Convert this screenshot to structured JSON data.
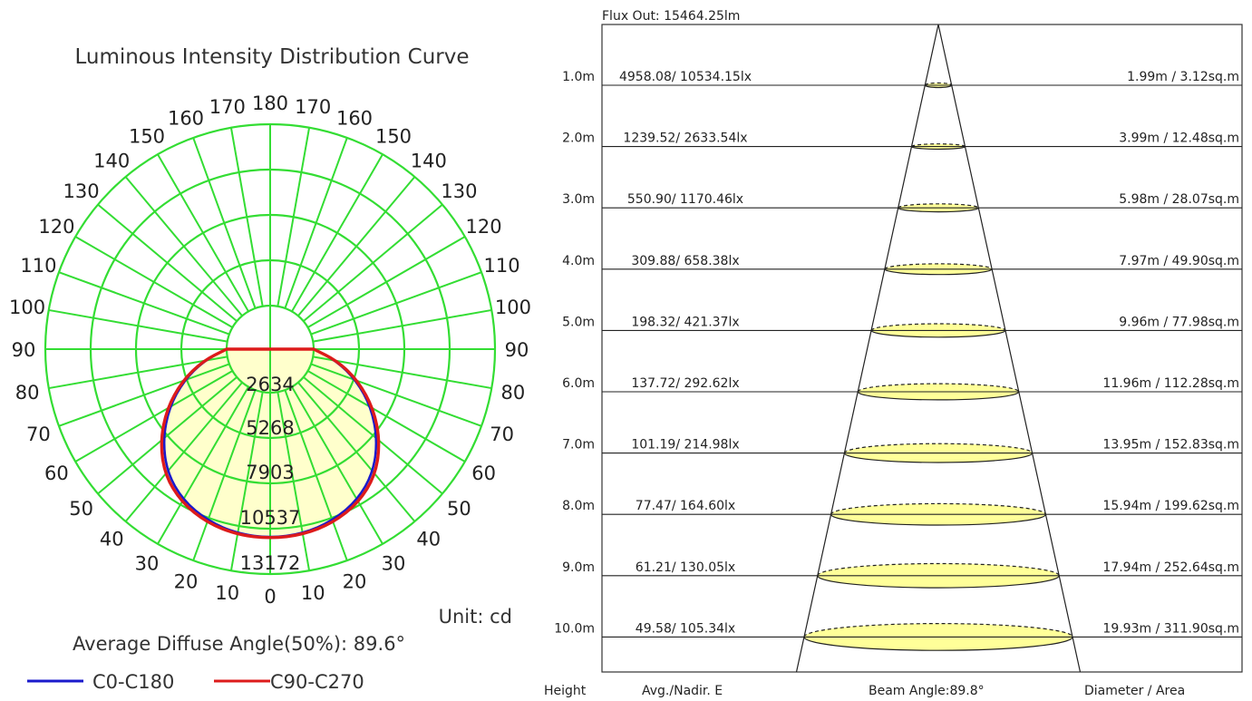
{
  "polar": {
    "title": "Luminous Intensity Distribution Curve",
    "unit_label": "Unit: cd",
    "diffuse_label": "Average Diffuse Angle(50%): 89.6°",
    "ring_labels": [
      "2634",
      "5268",
      "7903",
      "10537",
      "13172"
    ],
    "angle_labels": {
      "left": [
        "0",
        "10",
        "20",
        "30",
        "40",
        "50",
        "60",
        "70",
        "80",
        "90",
        "100",
        "110",
        "120",
        "130",
        "140",
        "150",
        "160",
        "170",
        "180"
      ],
      "right": [
        "10",
        "20",
        "30",
        "40",
        "50",
        "60",
        "70",
        "80",
        "90",
        "100",
        "110",
        "120",
        "130",
        "140",
        "150",
        "160",
        "170"
      ]
    },
    "legend": [
      {
        "label": "C0-C180",
        "color": "#1a1acc"
      },
      {
        "label": "C90-C270",
        "color": "#dd1b1b"
      }
    ],
    "grid_color": "#33dd33",
    "fill_color": "#ffffcc"
  },
  "chart_data": [
    {
      "type": "polar",
      "title": "Luminous Intensity Distribution Curve",
      "unit": "cd",
      "rmax": 13172,
      "ring_values": [
        2634,
        5268,
        7903,
        10537,
        13172
      ],
      "angles_deg": [
        0,
        10,
        20,
        30,
        40,
        50,
        60,
        70,
        80,
        90
      ],
      "series": [
        {
          "name": "C0-C180",
          "values": [
            10550,
            10450,
            10100,
            9500,
            8500,
            7000,
            5300,
            3500,
            1700,
            0
          ]
        },
        {
          "name": "C90-C270",
          "values": [
            10600,
            10520,
            10250,
            9700,
            8750,
            7250,
            5500,
            3650,
            1800,
            0
          ]
        }
      ],
      "average_diffuse_angle": "89.6°"
    },
    {
      "type": "table",
      "title": "Flux Out: 15464.25lm",
      "columns": [
        "Height",
        "Avg./Nadir. E",
        "Diameter / Area"
      ],
      "beam_angle": "Beam Angle:89.8°",
      "rows": [
        {
          "height": "1.0m",
          "illuminance": "4958.08/ 10534.15lx",
          "diameter_area": "1.99m / 3.12sq.m"
        },
        {
          "height": "2.0m",
          "illuminance": "1239.52/ 2633.54lx",
          "diameter_area": "3.99m / 12.48sq.m"
        },
        {
          "height": "3.0m",
          "illuminance": "550.90/ 1170.46lx",
          "diameter_area": "5.98m / 28.07sq.m"
        },
        {
          "height": "4.0m",
          "illuminance": "309.88/ 658.38lx",
          "diameter_area": "7.97m / 49.90sq.m"
        },
        {
          "height": "5.0m",
          "illuminance": "198.32/ 421.37lx",
          "diameter_area": "9.96m / 77.98sq.m"
        },
        {
          "height": "6.0m",
          "illuminance": "137.72/ 292.62lx",
          "diameter_area": "11.96m / 112.28sq.m"
        },
        {
          "height": "7.0m",
          "illuminance": "101.19/ 214.98lx",
          "diameter_area": "13.95m / 152.83sq.m"
        },
        {
          "height": "8.0m",
          "illuminance": "77.47/ 164.60lx",
          "diameter_area": "15.94m / 199.62sq.m"
        },
        {
          "height": "9.0m",
          "illuminance": "61.21/ 130.05lx",
          "diameter_area": "17.94m / 252.64sq.m"
        },
        {
          "height": "10.0m",
          "illuminance": "49.58/ 105.34lx",
          "diameter_area": "19.93m / 311.90sq.m"
        }
      ]
    }
  ],
  "cone": {
    "flux_label": "Flux Out: 15464.25lm",
    "footer": {
      "height": "Height",
      "illuminance": "Avg./Nadir. E",
      "beam_angle": "Beam Angle:89.8°",
      "diameter_area": "Diameter / Area"
    },
    "spot_fill": "#ffff99"
  }
}
